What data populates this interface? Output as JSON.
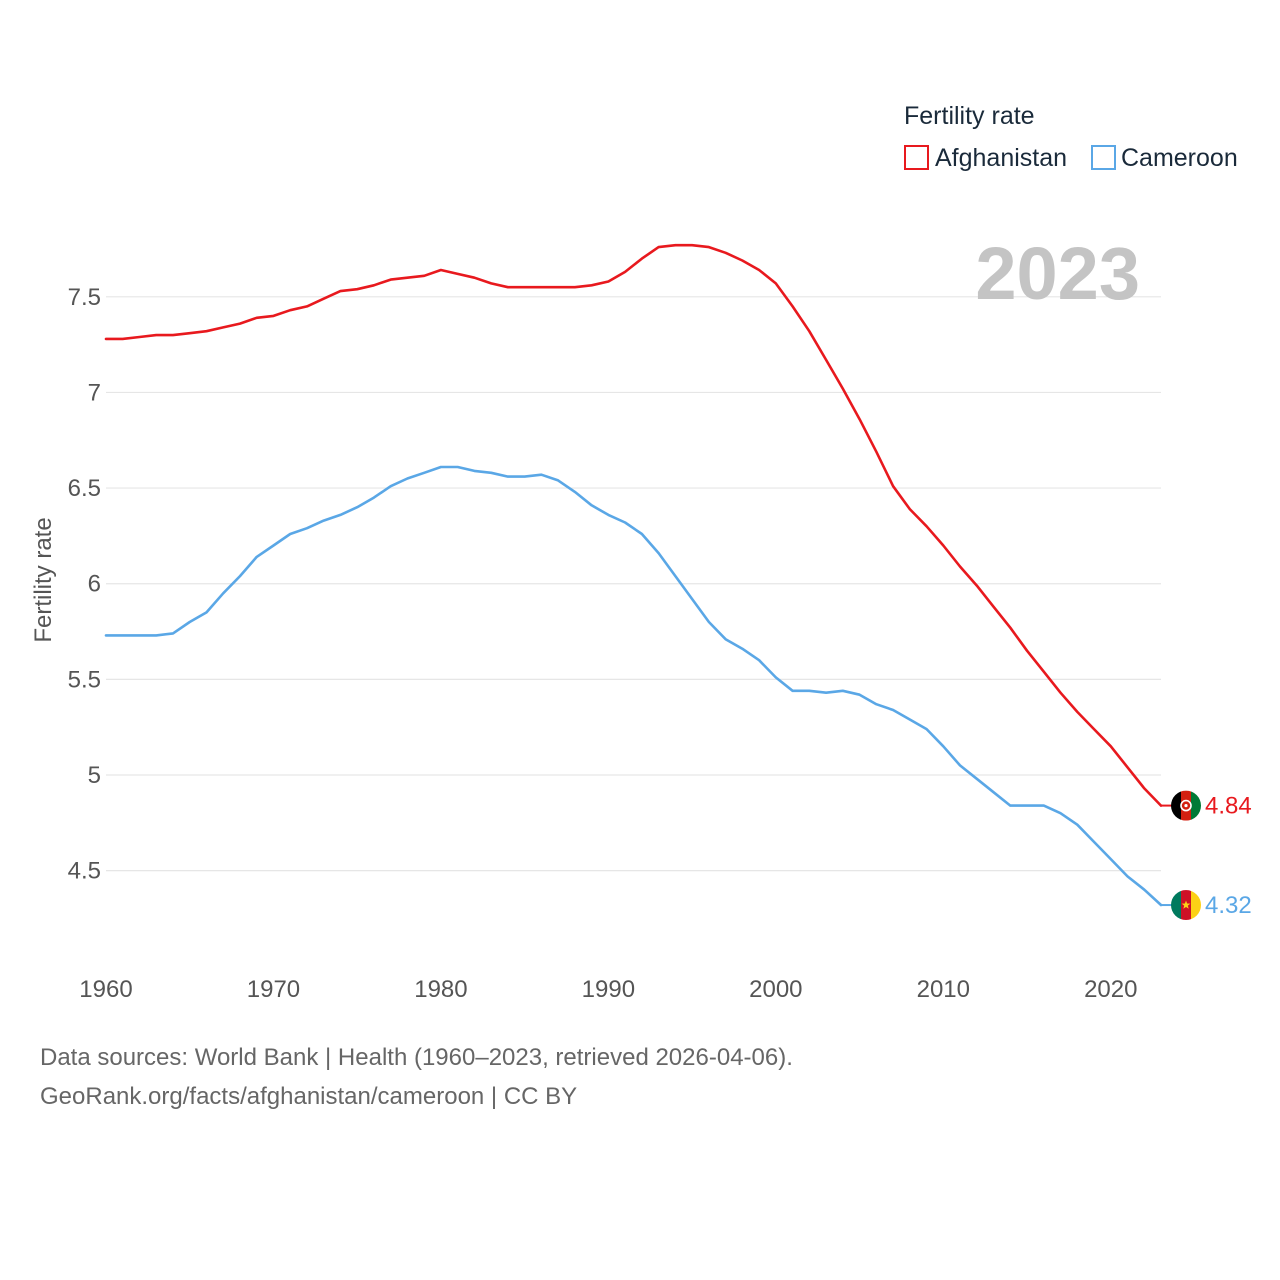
{
  "chart_data": {
    "type": "line",
    "title": "Fertility rate",
    "ylabel": "Fertility rate",
    "xlabel": "",
    "year_label": "2023",
    "xlim": [
      1960,
      2023
    ],
    "ylim": [
      4.2,
      7.98
    ],
    "x_ticks": [
      1960,
      1970,
      1980,
      1990,
      2000,
      2010,
      2020
    ],
    "y_ticks": [
      4.5,
      5,
      5.5,
      6,
      6.5,
      7,
      7.5
    ],
    "y_tick_labels": [
      "4.5",
      "5",
      "5.5",
      "6",
      "6.5",
      "7",
      "7.5"
    ],
    "grid": true,
    "legend": "top-right",
    "x": [
      1960,
      1961,
      1962,
      1963,
      1964,
      1965,
      1966,
      1967,
      1968,
      1969,
      1970,
      1971,
      1972,
      1973,
      1974,
      1975,
      1976,
      1977,
      1978,
      1979,
      1980,
      1981,
      1982,
      1983,
      1984,
      1985,
      1986,
      1987,
      1988,
      1989,
      1990,
      1991,
      1992,
      1993,
      1994,
      1995,
      1996,
      1997,
      1998,
      1999,
      2000,
      2001,
      2002,
      2003,
      2004,
      2005,
      2006,
      2007,
      2008,
      2009,
      2010,
      2011,
      2012,
      2013,
      2014,
      2015,
      2016,
      2017,
      2018,
      2019,
      2020,
      2021,
      2022,
      2023
    ],
    "series": [
      {
        "name": "Afghanistan",
        "color": "#e8191e",
        "end_label": "4.84",
        "flag": "afghanistan-flag-icon",
        "values": [
          7.28,
          7.28,
          7.29,
          7.3,
          7.3,
          7.31,
          7.32,
          7.34,
          7.36,
          7.39,
          7.4,
          7.43,
          7.45,
          7.49,
          7.53,
          7.54,
          7.56,
          7.59,
          7.6,
          7.61,
          7.64,
          7.62,
          7.6,
          7.57,
          7.55,
          7.55,
          7.55,
          7.55,
          7.55,
          7.56,
          7.58,
          7.63,
          7.7,
          7.76,
          7.77,
          7.77,
          7.76,
          7.73,
          7.69,
          7.64,
          7.57,
          7.45,
          7.32,
          7.17,
          7.02,
          6.86,
          6.69,
          6.51,
          6.39,
          6.3,
          6.2,
          6.09,
          5.99,
          5.88,
          5.77,
          5.65,
          5.54,
          5.43,
          5.33,
          5.24,
          5.15,
          5.04,
          4.93,
          4.84
        ]
      },
      {
        "name": "Cameroon",
        "color": "#5aa7e6",
        "end_label": "4.32",
        "flag": "cameroon-flag-icon",
        "values": [
          5.73,
          5.73,
          5.73,
          5.73,
          5.74,
          5.8,
          5.85,
          5.95,
          6.04,
          6.14,
          6.2,
          6.26,
          6.29,
          6.33,
          6.36,
          6.4,
          6.45,
          6.51,
          6.55,
          6.58,
          6.61,
          6.61,
          6.59,
          6.58,
          6.56,
          6.56,
          6.57,
          6.54,
          6.48,
          6.41,
          6.36,
          6.32,
          6.26,
          6.16,
          6.04,
          5.92,
          5.8,
          5.71,
          5.66,
          5.6,
          5.51,
          5.44,
          5.44,
          5.43,
          5.44,
          5.42,
          5.37,
          5.34,
          5.29,
          5.24,
          5.15,
          5.05,
          4.98,
          4.91,
          4.84,
          4.84,
          4.84,
          4.8,
          4.74,
          4.65,
          4.56,
          4.47,
          4.4,
          4.32
        ]
      }
    ]
  },
  "footer": {
    "sources": "Data sources: World Bank | Health (1960–2023, retrieved 2026-04-06).",
    "url": "GeoRank.org/facts/afghanistan/cameroon | CC BY"
  }
}
